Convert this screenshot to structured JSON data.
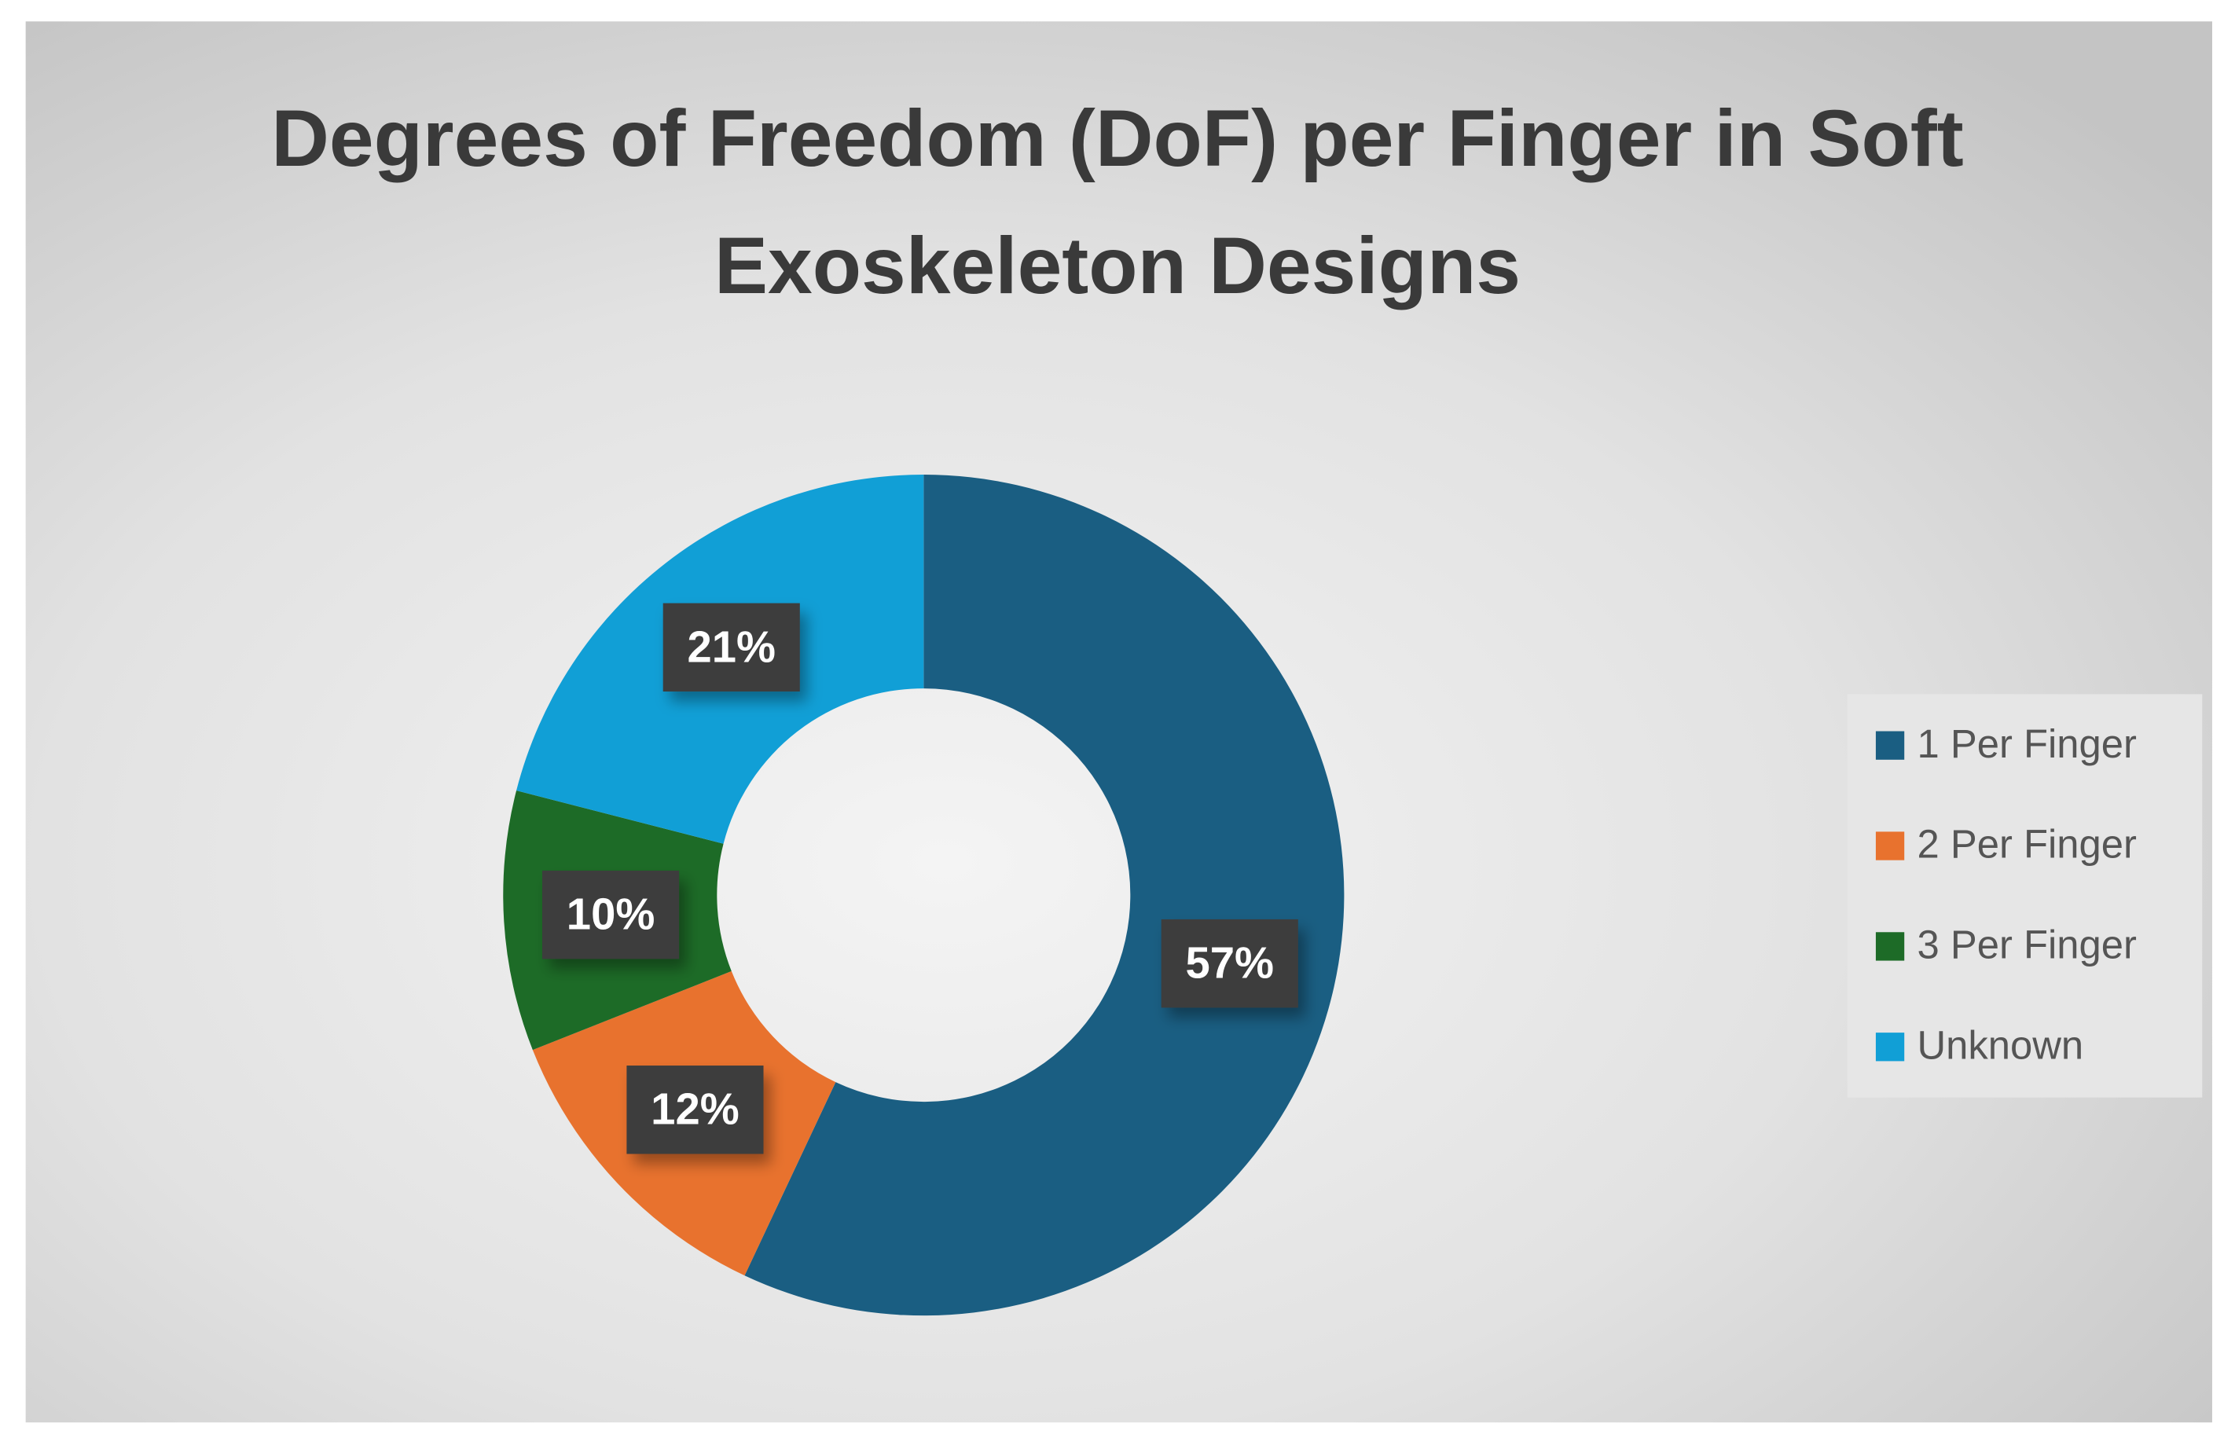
{
  "chart_data": {
    "type": "donut",
    "title": "Degrees of Freedom (DoF) per Finger in Soft Exoskeleton Designs",
    "categories": [
      "1 Per Finger",
      "2 Per Finger",
      "3 Per Finger",
      "Unknown"
    ],
    "values": [
      57,
      12,
      10,
      21
    ],
    "value_labels": [
      "57%",
      "12%",
      "10%",
      "21%"
    ],
    "colors": [
      "#1a5e82",
      "#e8722e",
      "#1d6b27",
      "#119fd6"
    ],
    "legend": "right"
  }
}
